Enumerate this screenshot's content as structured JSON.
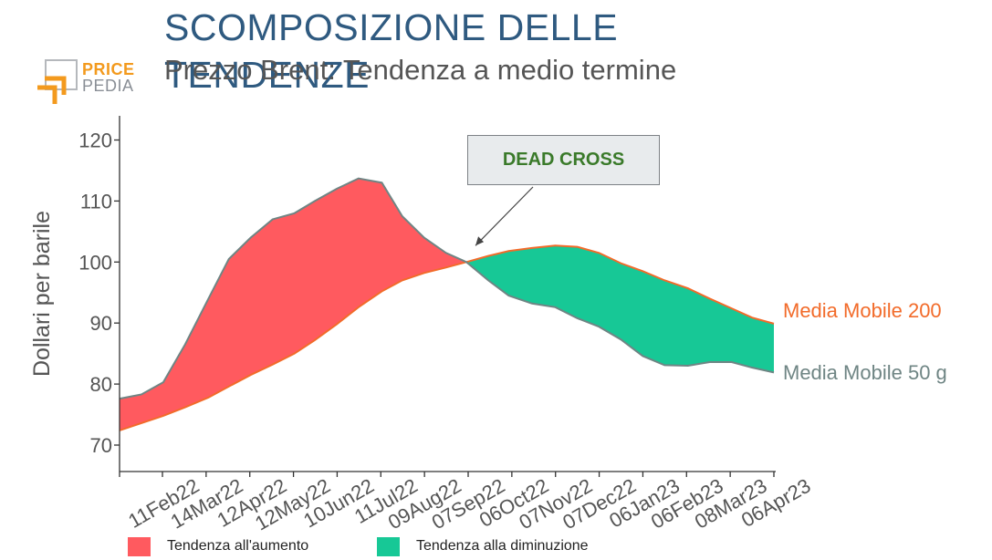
{
  "header": {
    "title": "SCOMPOSIZIONE DELLE TENDENZE",
    "subtitle": "Prezzo Brent: Tendenza a medio termine"
  },
  "logo": {
    "line1": "PRICE",
    "line2": "PEDIA"
  },
  "annotation": {
    "text": "DEAD CROSS"
  },
  "legend": [
    {
      "label": "Tendenza all'aumento",
      "color": "#ff5a5f"
    },
    {
      "label": "Tendenza alla diminuzione",
      "color": "#17c896"
    }
  ],
  "colors": {
    "up_fill": "#ff5a5f",
    "down_fill": "#17c896",
    "ma50_line": "#6f8584",
    "ma200_line": "#f26b2a",
    "title": "#2f5a80",
    "annotation_text": "#3a7a2a"
  },
  "chart_data": {
    "type": "area",
    "title": "Prezzo Brent: Tendenza a medio termine",
    "xlabel": "",
    "ylabel": "Dollari per barile",
    "ylim": [
      66,
      124
    ],
    "yticks": [
      70,
      80,
      90,
      100,
      110,
      120
    ],
    "x_tick_labels": [
      "11Feb22",
      "14Mar22",
      "12Apr22",
      "12May22",
      "10Jun22",
      "11Jul22",
      "09Aug22",
      "07Sep22",
      "06Oct22",
      "07Nov22",
      "07Dec22",
      "06Jan23",
      "06Feb23",
      "08Mar23",
      "06Apr23"
    ],
    "x": [
      "2022-01-12",
      "2022-01-27",
      "2022-02-11",
      "2022-02-26",
      "2022-03-14",
      "2022-03-28",
      "2022-04-12",
      "2022-04-27",
      "2022-05-12",
      "2022-05-26",
      "2022-06-10",
      "2022-06-25",
      "2022-07-11",
      "2022-07-25",
      "2022-08-09",
      "2022-08-24",
      "2022-09-07",
      "2022-09-22",
      "2022-10-06",
      "2022-10-22",
      "2022-11-07",
      "2022-11-22",
      "2022-12-07",
      "2022-12-22",
      "2023-01-06",
      "2023-01-21",
      "2023-02-06",
      "2023-02-21",
      "2023-03-08",
      "2023-03-22",
      "2023-04-06"
    ],
    "series": [
      {
        "name": "Media Mobile 200",
        "label_color": "#f26b2a",
        "values": [
          72.4,
          73.6,
          74.8,
          76.2,
          77.8,
          79.6,
          81.5,
          83.2,
          85.0,
          87.2,
          89.8,
          92.6,
          95.2,
          97.0,
          98.2,
          99.1,
          100.0,
          101.0,
          101.8,
          102.3,
          102.7,
          102.5,
          101.5,
          99.8,
          98.5,
          97.0,
          95.7,
          94.0,
          92.4,
          90.9,
          89.9
        ]
      },
      {
        "name": "Media Mobile 50 g",
        "label_color": "#6f8584",
        "values": [
          77.6,
          78.3,
          80.3,
          86.5,
          94.0,
          100.5,
          104.0,
          107.0,
          108.0,
          110.0,
          112.0,
          113.7,
          113.0,
          107.5,
          104.0,
          101.5,
          100.0,
          97.0,
          94.5,
          93.2,
          92.6,
          90.8,
          89.4,
          87.3,
          84.6,
          83.1,
          83.0,
          83.6,
          83.6,
          82.7,
          81.9
        ]
      }
    ],
    "annotation": {
      "text": "DEAD CROSS",
      "x": "2022-09-07",
      "y": 100.0
    },
    "legend_position": "bottom",
    "grid": false
  }
}
